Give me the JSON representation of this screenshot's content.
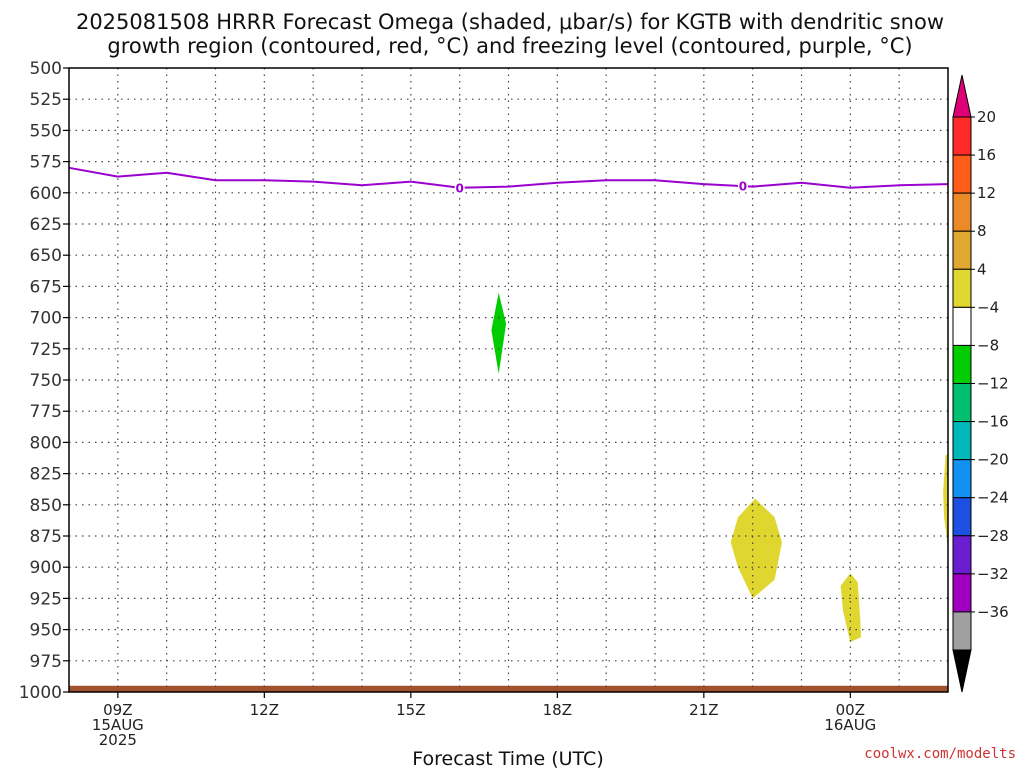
{
  "title_line1": "2025081508 HRRR Forecast Omega (shaded, μbar/s) for KGTB with dendritic snow",
  "title_line2": "growth region (contoured, red, °C) and freezing level (contoured, purple, °C)",
  "credit": "coolwx.com/modelts",
  "chart_data": {
    "type": "time-height contour (pressure vs forecast time)",
    "title": "2025081508 HRRR Forecast Omega (shaded, μbar/s) for KGTB with dendritic snow growth region (contoured, red, °C) and freezing level (contoured, purple, °C)",
    "xlabel": "Forecast Time (UTC)",
    "ylabel": "",
    "x_unit": "hours after 2025-08-15 08Z",
    "xlim": [
      0,
      18
    ],
    "ylim": [
      1000,
      500
    ],
    "y_reversed": true,
    "grid": true,
    "y_ticks": [
      500,
      525,
      550,
      575,
      600,
      625,
      650,
      675,
      700,
      725,
      750,
      775,
      800,
      825,
      850,
      875,
      900,
      925,
      950,
      975,
      1000
    ],
    "x_ticks": [
      {
        "x": 1,
        "lines": [
          "09Z",
          "15AUG",
          "2025"
        ]
      },
      {
        "x": 4,
        "lines": [
          "12Z"
        ]
      },
      {
        "x": 7,
        "lines": [
          "15Z"
        ]
      },
      {
        "x": 10,
        "lines": [
          "18Z"
        ]
      },
      {
        "x": 13,
        "lines": [
          "21Z"
        ]
      },
      {
        "x": 16,
        "lines": [
          "00Z",
          "16AUG"
        ]
      }
    ],
    "freezing_level": {
      "label": "0",
      "label_at": [
        8,
        13.8
      ],
      "points": [
        [
          0,
          580
        ],
        [
          1,
          587
        ],
        [
          2,
          584
        ],
        [
          3,
          590
        ],
        [
          4,
          590
        ],
        [
          5,
          591
        ],
        [
          6,
          594
        ],
        [
          7,
          591
        ],
        [
          8,
          596
        ],
        [
          9,
          595
        ],
        [
          10,
          592
        ],
        [
          11,
          590
        ],
        [
          12,
          590
        ],
        [
          13,
          593
        ],
        [
          14,
          595
        ],
        [
          15,
          592
        ],
        [
          16,
          596
        ],
        [
          17,
          594
        ],
        [
          18,
          593
        ]
      ]
    },
    "omega_regions": [
      {
        "value_range": [
          -8,
          -4
        ],
        "color": "#00cc00",
        "points": [
          [
            8.8,
            680
          ],
          [
            8.95,
            705
          ],
          [
            8.8,
            745
          ],
          [
            8.65,
            710
          ]
        ]
      },
      {
        "value_range": [
          4,
          8
        ],
        "color": "#e0d630",
        "points": [
          [
            14.05,
            845
          ],
          [
            14.45,
            860
          ],
          [
            14.6,
            880
          ],
          [
            14.45,
            910
          ],
          [
            14.0,
            925
          ],
          [
            13.7,
            900
          ],
          [
            13.55,
            880
          ],
          [
            13.7,
            860
          ]
        ]
      },
      {
        "value_range": [
          4,
          8
        ],
        "color": "#e0d630",
        "points": [
          [
            16.0,
            905
          ],
          [
            16.15,
            912
          ],
          [
            16.2,
            940
          ],
          [
            16.22,
            956
          ],
          [
            16.0,
            960
          ],
          [
            15.85,
            935
          ],
          [
            15.8,
            915
          ]
        ]
      },
      {
        "value_range": [
          4,
          8
        ],
        "color": "#e0d630",
        "points": [
          [
            17.95,
            810
          ],
          [
            18.0,
            810
          ],
          [
            18.0,
            885
          ],
          [
            17.92,
            860
          ],
          [
            17.9,
            840
          ]
        ]
      }
    ],
    "ground_band": {
      "color": "#a0522d",
      "pressure": [
        1000,
        995
      ]
    },
    "colorbar": {
      "unit": "μbar/s",
      "levels": [
        -36,
        -32,
        -28,
        -24,
        -20,
        -16,
        -12,
        -8,
        -4,
        4,
        8,
        12,
        16,
        20
      ],
      "labels": [
        "20",
        "16",
        "12",
        "8",
        "4",
        "−4",
        "−8",
        "−12",
        "−16",
        "−20",
        "−24",
        "−28",
        "−32",
        "−36"
      ],
      "top_arrow_color": "#dd0077",
      "bottom_arrow_color": "#000000",
      "bands_top_to_bottom": [
        "#ff2a2a",
        "#ff5e1a",
        "#ea8a28",
        "#e0a830",
        "#e0d630",
        "#ffffff",
        "#00cc00",
        "#00c070",
        "#00b8b8",
        "#1090f0",
        "#1c50e0",
        "#6a1ed0",
        "#a000c0",
        "#a0a0a0"
      ]
    }
  }
}
